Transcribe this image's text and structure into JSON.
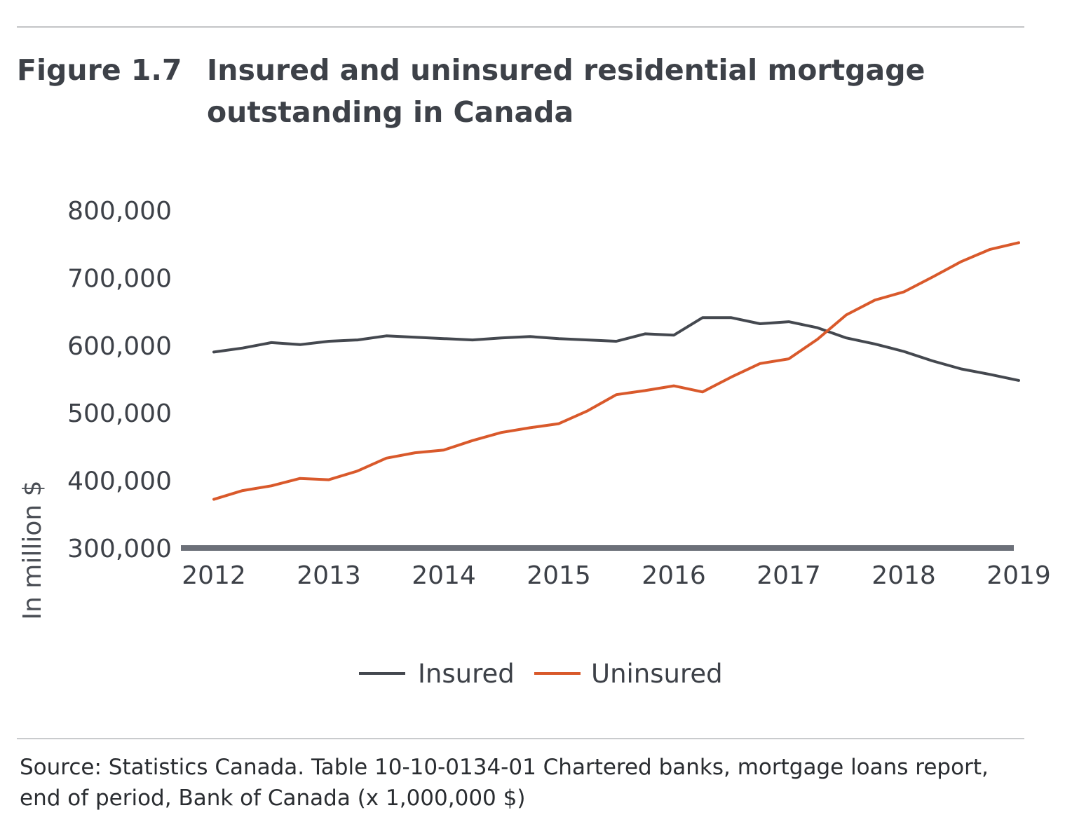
{
  "figure": {
    "number": "Figure 1.7",
    "title": "Insured and uninsured residential mortgage outstanding in Canada"
  },
  "source": "Source: Statistics Canada. Table 10-10-0134-01 Chartered banks, mortgage loans report, end of period, Bank of Canada (x 1,000,000 $)",
  "chart_data": {
    "type": "line",
    "title": "Insured and uninsured residential mortgage outstanding in Canada",
    "ylabel": "In million $",
    "xlabel": "",
    "ylim": [
      300000,
      800000
    ],
    "xlim": [
      2012.0,
      2019.0
    ],
    "yticks": [
      300000,
      400000,
      500000,
      600000,
      700000,
      800000
    ],
    "ytick_labels": [
      "300,000",
      "400,000",
      "500,000",
      "600,000",
      "700,000",
      "800,000"
    ],
    "xticks": [
      2012,
      2013,
      2014,
      2015,
      2016,
      2017,
      2018,
      2019
    ],
    "xtick_labels": [
      "2012",
      "2013",
      "2014",
      "2015",
      "2016",
      "2017",
      "2018",
      "2019"
    ],
    "grid": false,
    "legend_position": "bottom-center",
    "x": [
      2012.0,
      2012.25,
      2012.5,
      2012.75,
      2013.0,
      2013.25,
      2013.5,
      2013.75,
      2014.0,
      2014.25,
      2014.5,
      2014.75,
      2015.0,
      2015.25,
      2015.5,
      2015.75,
      2016.0,
      2016.25,
      2016.5,
      2016.75,
      2017.0,
      2017.25,
      2017.5,
      2017.75,
      2018.0,
      2018.25,
      2018.5,
      2018.75,
      2019.0
    ],
    "series": [
      {
        "name": "Insured",
        "color": "#44484f",
        "values": [
          590000,
          596000,
          604000,
          601000,
          606000,
          608000,
          614000,
          612000,
          610000,
          608000,
          611000,
          613000,
          610000,
          608000,
          606000,
          617000,
          615000,
          641000,
          641000,
          632000,
          635000,
          626000,
          611000,
          602000,
          591000,
          577000,
          565000,
          557000,
          548000
        ]
      },
      {
        "name": "Uninsured",
        "color": "#d9592b",
        "values": [
          372000,
          385000,
          392000,
          403000,
          401000,
          414000,
          433000,
          441000,
          445000,
          459000,
          471000,
          478000,
          484000,
          503000,
          527000,
          533000,
          540000,
          531000,
          553000,
          573000,
          580000,
          609000,
          645000,
          667000,
          679000,
          701000,
          724000,
          742000,
          752000
        ]
      }
    ]
  }
}
